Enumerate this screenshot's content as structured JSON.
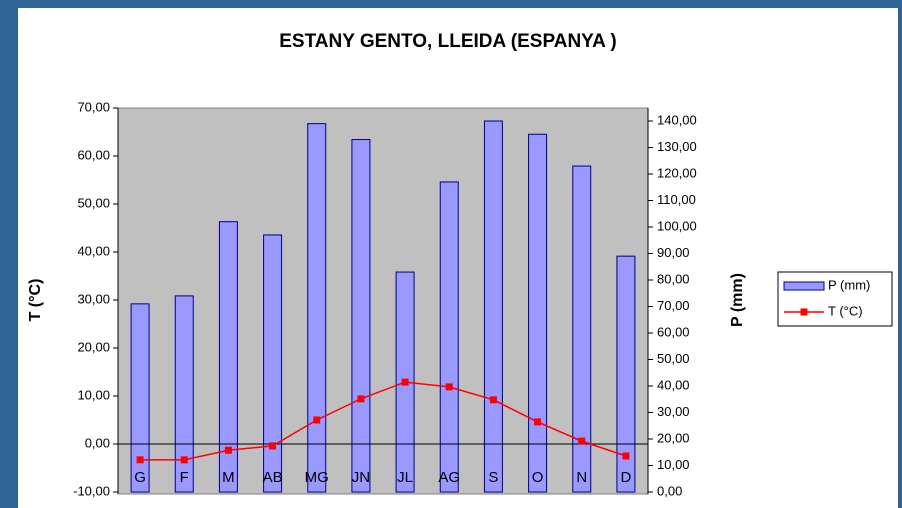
{
  "chart_data": {
    "type": "bar-line",
    "title": "ESTANY GENTO, LLEIDA (ESPANYA )",
    "y_label": "T (°C)",
    "y2_label": "P (mm)",
    "categories": [
      "G",
      "F",
      "M",
      "AB",
      "MG",
      "JN",
      "JL",
      "AG",
      "S",
      "O",
      "N",
      "D"
    ],
    "series": [
      {
        "name": "P (mm)",
        "type": "bar",
        "axis": "y2",
        "color": "#9999ff",
        "values": [
          71,
          74,
          102,
          97,
          139,
          133,
          83,
          117,
          140,
          135,
          123,
          89
        ]
      },
      {
        "name": "T (°C)",
        "type": "line",
        "axis": "y",
        "color": "#ff0000",
        "values": [
          -3.3,
          -3.3,
          -1.3,
          -0.4,
          5.0,
          9.4,
          12.9,
          11.9,
          9.2,
          4.6,
          0.6,
          -2.5
        ]
      }
    ],
    "ylim": [
      -10,
      70
    ],
    "yticks": [
      {
        "value": -10,
        "label": "-10,00"
      },
      {
        "value": 0,
        "label": "0,00"
      },
      {
        "value": 10,
        "label": "10,00"
      },
      {
        "value": 20,
        "label": "20,00"
      },
      {
        "value": 30,
        "label": "30,00"
      },
      {
        "value": 40,
        "label": "40,00"
      },
      {
        "value": 50,
        "label": "50,00"
      },
      {
        "value": 60,
        "label": "60,00"
      },
      {
        "value": 70,
        "label": "70,00"
      }
    ],
    "y2lim": [
      0,
      140
    ],
    "y2ticks": [
      {
        "value": 0,
        "label": "0,00"
      },
      {
        "value": 10,
        "label": "10,00"
      },
      {
        "value": 20,
        "label": "20,00"
      },
      {
        "value": 30,
        "label": "30,00"
      },
      {
        "value": 40,
        "label": "40,00"
      },
      {
        "value": 50,
        "label": "50,00"
      },
      {
        "value": 60,
        "label": "60,00"
      },
      {
        "value": 70,
        "label": "70,00"
      },
      {
        "value": 80,
        "label": "80,00"
      },
      {
        "value": 90,
        "label": "90,00"
      },
      {
        "value": 100,
        "label": "100,00"
      },
      {
        "value": 110,
        "label": "110,00"
      },
      {
        "value": 120,
        "label": "120,00"
      },
      {
        "value": 130,
        "label": "130,00"
      },
      {
        "value": 140,
        "label": "140,00"
      }
    ],
    "legend": "right"
  }
}
